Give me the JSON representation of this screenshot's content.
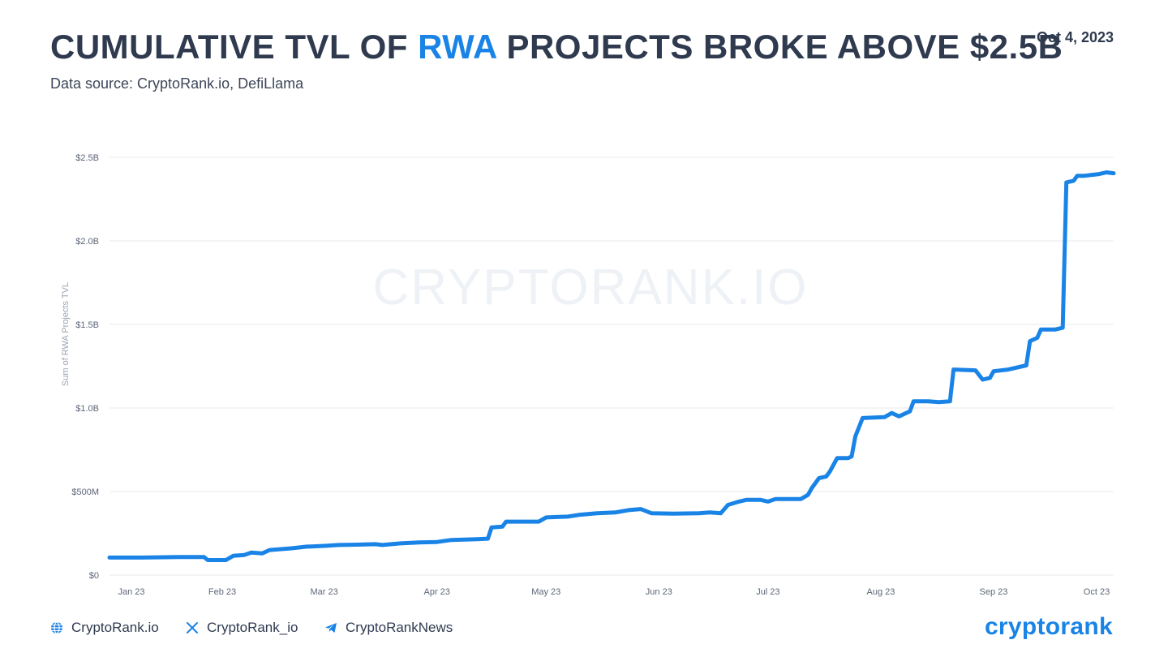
{
  "header": {
    "title_prefix": "CUMULATIVE TVL OF ",
    "title_accent": "RWA",
    "title_suffix": " PROJECTS BROKE ABOVE $2.5B",
    "subtitle": "Data source: CryptoRank.io, DefiLlama",
    "date": "Oct 4, 2023"
  },
  "watermark": "CRYPTORANK.IO",
  "footer": {
    "website": "CryptoRank.io",
    "twitter": "CryptoRank_io",
    "telegram": "CryptoRankNews",
    "logo": "cryptorank"
  },
  "colors": {
    "line": "#1a84e6",
    "accent": "#1a84e6",
    "text": "#2f3a4f",
    "grid": "#e6e9ee"
  },
  "chart_data": {
    "type": "line",
    "title": "CUMULATIVE TVL OF RWA PROJECTS BROKE ABOVE $2.5B",
    "ylabel": "Sum of RWA Projects TVL",
    "xlabel": "",
    "x_range": [
      "2023-01-01",
      "2023-10-04"
    ],
    "ylim": [
      0,
      2.5
    ],
    "unit": "billion USD",
    "y_ticks": [
      {
        "value": 0,
        "label": "$0"
      },
      {
        "value": 0.5,
        "label": "$500M"
      },
      {
        "value": 1.0,
        "label": "$1.0B"
      },
      {
        "value": 1.5,
        "label": "$1.5B"
      },
      {
        "value": 2.0,
        "label": "$2.0B"
      },
      {
        "value": 2.5,
        "label": "$2.5B"
      }
    ],
    "x_ticks": [
      {
        "date": "2023-01-01",
        "label": "Jan 23"
      },
      {
        "date": "2023-02-01",
        "label": "Feb 23"
      },
      {
        "date": "2023-03-01",
        "label": "Mar 23"
      },
      {
        "date": "2023-04-01",
        "label": "Apr 23"
      },
      {
        "date": "2023-05-01",
        "label": "May 23"
      },
      {
        "date": "2023-06-01",
        "label": "Jun 23"
      },
      {
        "date": "2023-07-01",
        "label": "Jul 23"
      },
      {
        "date": "2023-08-01",
        "label": "Aug 23"
      },
      {
        "date": "2023-09-01",
        "label": "Sep 23"
      },
      {
        "date": "2023-10-01",
        "label": "Oct 23"
      }
    ],
    "grid": true,
    "legend": "none",
    "series": [
      {
        "points": [
          [
            "2023-01-01",
            0.105
          ],
          [
            "2023-01-10",
            0.105
          ],
          [
            "2023-01-20",
            0.108
          ],
          [
            "2023-01-27",
            0.108
          ],
          [
            "2023-01-28",
            0.09
          ],
          [
            "2023-02-02",
            0.09
          ],
          [
            "2023-02-04",
            0.115
          ],
          [
            "2023-02-07",
            0.12
          ],
          [
            "2023-02-09",
            0.135
          ],
          [
            "2023-02-12",
            0.13
          ],
          [
            "2023-02-14",
            0.15
          ],
          [
            "2023-02-20",
            0.16
          ],
          [
            "2023-02-24",
            0.17
          ],
          [
            "2023-03-01",
            0.175
          ],
          [
            "2023-03-05",
            0.18
          ],
          [
            "2023-03-10",
            0.182
          ],
          [
            "2023-03-15",
            0.185
          ],
          [
            "2023-03-17",
            0.18
          ],
          [
            "2023-03-22",
            0.19
          ],
          [
            "2023-03-27",
            0.195
          ],
          [
            "2023-04-01",
            0.198
          ],
          [
            "2023-04-05",
            0.21
          ],
          [
            "2023-04-12",
            0.215
          ],
          [
            "2023-04-15",
            0.218
          ],
          [
            "2023-04-16",
            0.285
          ],
          [
            "2023-04-19",
            0.29
          ],
          [
            "2023-04-20",
            0.32
          ],
          [
            "2023-04-29",
            0.32
          ],
          [
            "2023-05-01",
            0.345
          ],
          [
            "2023-05-07",
            0.35
          ],
          [
            "2023-05-10",
            0.36
          ],
          [
            "2023-05-15",
            0.37
          ],
          [
            "2023-05-20",
            0.375
          ],
          [
            "2023-05-24",
            0.39
          ],
          [
            "2023-05-27",
            0.395
          ],
          [
            "2023-05-30",
            0.37
          ],
          [
            "2023-06-05",
            0.368
          ],
          [
            "2023-06-12",
            0.37
          ],
          [
            "2023-06-15",
            0.375
          ],
          [
            "2023-06-18",
            0.37
          ],
          [
            "2023-06-20",
            0.42
          ],
          [
            "2023-06-23",
            0.44
          ],
          [
            "2023-06-25",
            0.45
          ],
          [
            "2023-06-29",
            0.45
          ],
          [
            "2023-07-01",
            0.44
          ],
          [
            "2023-07-03",
            0.455
          ],
          [
            "2023-07-10",
            0.455
          ],
          [
            "2023-07-12",
            0.48
          ],
          [
            "2023-07-13",
            0.52
          ],
          [
            "2023-07-15",
            0.58
          ],
          [
            "2023-07-17",
            0.59
          ],
          [
            "2023-07-18",
            0.62
          ],
          [
            "2023-07-20",
            0.7
          ],
          [
            "2023-07-23",
            0.7
          ],
          [
            "2023-07-24",
            0.71
          ],
          [
            "2023-07-25",
            0.83
          ],
          [
            "2023-07-27",
            0.94
          ],
          [
            "2023-08-02",
            0.945
          ],
          [
            "2023-08-04",
            0.97
          ],
          [
            "2023-08-06",
            0.95
          ],
          [
            "2023-08-09",
            0.98
          ],
          [
            "2023-08-10",
            1.04
          ],
          [
            "2023-08-14",
            1.04
          ],
          [
            "2023-08-17",
            1.035
          ],
          [
            "2023-08-20",
            1.04
          ],
          [
            "2023-08-21",
            1.23
          ],
          [
            "2023-08-27",
            1.225
          ],
          [
            "2023-08-29",
            1.17
          ],
          [
            "2023-08-31",
            1.18
          ],
          [
            "2023-09-01",
            1.22
          ],
          [
            "2023-09-05",
            1.23
          ],
          [
            "2023-09-10",
            1.255
          ],
          [
            "2023-09-11",
            1.4
          ],
          [
            "2023-09-13",
            1.42
          ],
          [
            "2023-09-14",
            1.47
          ],
          [
            "2023-09-18",
            1.47
          ],
          [
            "2023-09-20",
            1.48
          ],
          [
            "2023-09-21",
            2.35
          ],
          [
            "2023-09-23",
            2.36
          ],
          [
            "2023-09-24",
            2.39
          ],
          [
            "2023-09-26",
            2.39
          ],
          [
            "2023-09-28",
            2.395
          ],
          [
            "2023-09-30",
            2.4
          ],
          [
            "2023-10-02",
            2.41
          ],
          [
            "2023-10-04",
            2.405
          ]
        ]
      }
    ]
  }
}
